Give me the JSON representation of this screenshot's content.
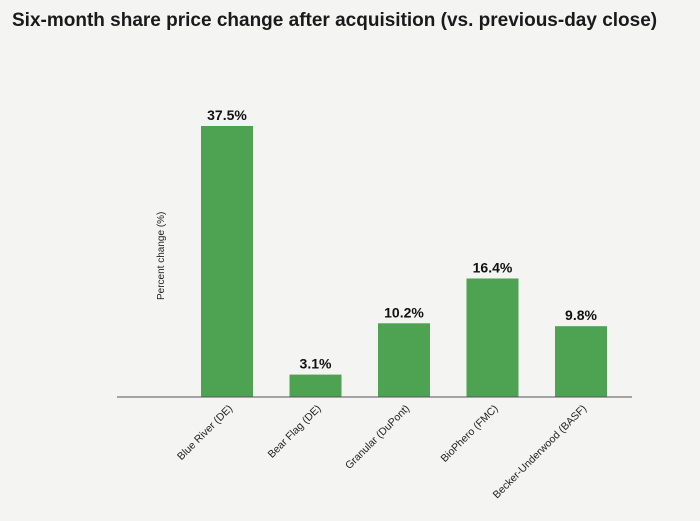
{
  "chart_data": {
    "type": "bar",
    "title": "Six-month share price change after acquisition (vs. previous-day close)",
    "xlabel": "",
    "ylabel": "Percent change (%)",
    "categories": [
      "Blue River (DE)",
      "Bear Flag (DE)",
      "Granular (DuPont)",
      "BioPhero (FMC)",
      "Becker-Underwood (BASF)"
    ],
    "values": [
      37.5,
      3.1,
      10.2,
      16.4,
      9.8
    ],
    "data_labels": [
      "37.5%",
      "3.1%",
      "10.2%",
      "16.4%",
      "9.8%"
    ],
    "ylim": [
      0,
      37.5
    ],
    "grid": false,
    "legend": "none",
    "bar_color": "#4ea352"
  }
}
